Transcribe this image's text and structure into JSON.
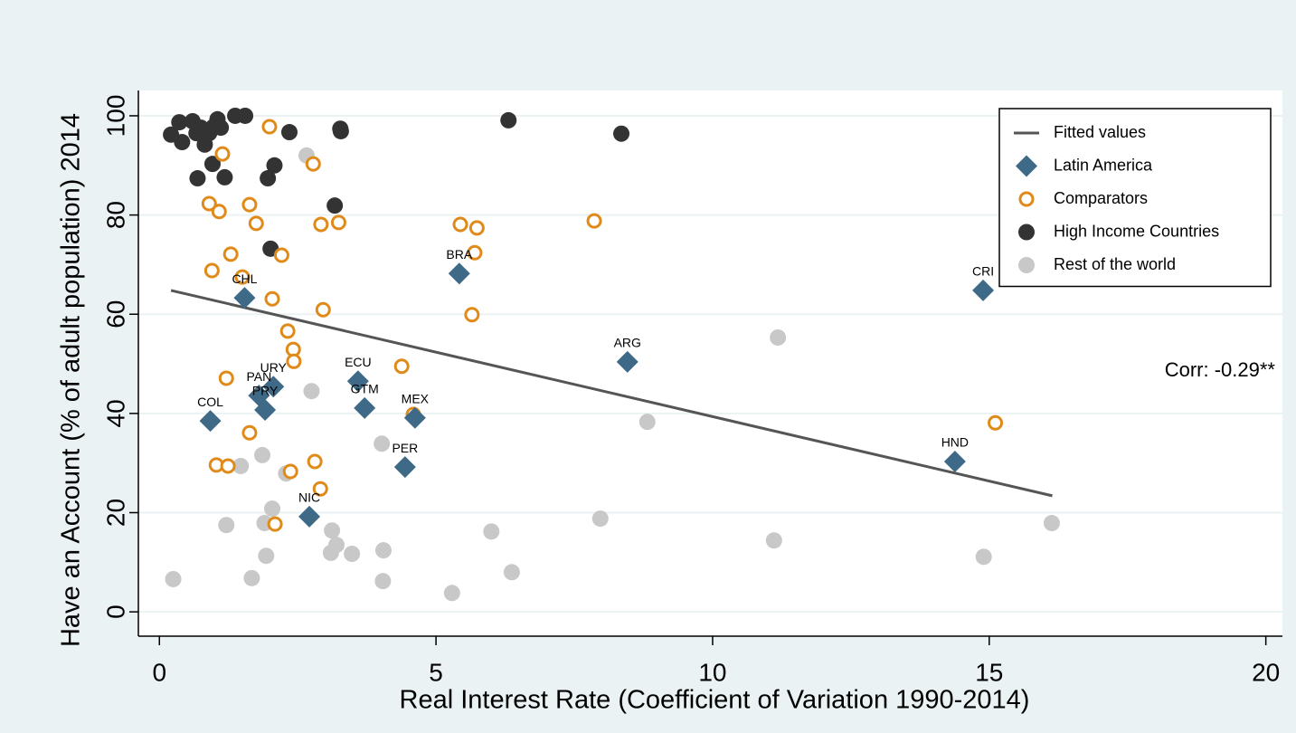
{
  "chart_data": {
    "type": "scatter",
    "x_label": "Real Interest Rate (Coefficient of Variation 1990-2014)",
    "y_label": "Have an Account (% of adult population) 2014",
    "annotation": "Corr: -0.29**",
    "xlim": [
      -0.38,
      20.3
    ],
    "ylim": [
      -4.9,
      105.1
    ],
    "xticks": [
      0,
      5,
      10,
      15,
      20
    ],
    "yticks": [
      0,
      20,
      40,
      60,
      80,
      100
    ],
    "grid": true,
    "legend": "top-right",
    "series": [
      {
        "name": "Fitted values",
        "marker": "line",
        "color": "#555555",
        "x": [
          0.21,
          16.14
        ],
        "values": [
          64.8,
          23.4
        ]
      },
      {
        "name": "Latin America",
        "marker": "diamond",
        "color": "#3e6a88",
        "labels": [
          "CHL",
          "BRA",
          "CRI",
          "ARG",
          "ECU",
          "GTM",
          "MEX",
          "PER",
          "HND",
          "NIC",
          "COL",
          "URY",
          "PAN",
          "PRY"
        ],
        "x": [
          1.54,
          5.42,
          14.89,
          8.46,
          3.59,
          3.71,
          4.62,
          4.44,
          14.38,
          2.71,
          0.92,
          2.06,
          1.8,
          1.91
        ],
        "values": [
          63.3,
          68.2,
          64.8,
          50.4,
          46.5,
          41.1,
          39.1,
          29.2,
          30.3,
          19.2,
          38.5,
          45.4,
          43.6,
          40.7
        ]
      },
      {
        "name": "Comparators",
        "marker": "hollow-circle",
        "color": "#e08a1a",
        "x": [
          1.99,
          1.14,
          2.78,
          0.9,
          1.63,
          1.08,
          1.75,
          2.92,
          3.24,
          5.44,
          5.74,
          7.86,
          5.7,
          1.29,
          2.21,
          0.95,
          1.5,
          2.04,
          2.96,
          5.65,
          2.32,
          2.42,
          2.43,
          4.38,
          1.21,
          4.59,
          15.11,
          1.63,
          2.81,
          1.03,
          1.24,
          2.37,
          2.91,
          2.09
        ],
        "values": [
          97.8,
          92.3,
          90.3,
          82.3,
          82.1,
          80.7,
          78.3,
          78.1,
          78.5,
          78.1,
          77.4,
          78.8,
          72.4,
          72.1,
          71.9,
          68.8,
          67.5,
          63.1,
          60.9,
          59.9,
          56.6,
          52.9,
          50.5,
          49.5,
          47.1,
          39.8,
          38.1,
          36.1,
          30.3,
          29.6,
          29.4,
          28.3,
          24.8,
          17.7
        ]
      },
      {
        "name": "High Income Countries",
        "marker": "circle",
        "color": "#333333",
        "x": [
          0.21,
          0.36,
          0.41,
          0.6,
          0.67,
          0.75,
          0.82,
          0.9,
          0.98,
          1.05,
          1.11,
          0.96,
          0.69,
          1.18,
          1.37,
          1.55,
          2.35,
          3.28,
          3.27,
          1.96,
          2.08,
          3.17,
          2.01,
          6.31,
          8.35
        ],
        "values": [
          96.2,
          98.7,
          94.7,
          98.9,
          96.5,
          97.6,
          94.2,
          96.5,
          97.8,
          99.3,
          97.6,
          90.3,
          87.4,
          87.6,
          100,
          100,
          96.7,
          96.9,
          97.4,
          87.4,
          90.0,
          81.9,
          73.2,
          99.1,
          96.4
        ]
      },
      {
        "name": "Rest of the world",
        "marker": "circle",
        "color": "#c8c8c8",
        "x": [
          2.66,
          0.25,
          2.75,
          11.18,
          8.82,
          4.02,
          1.86,
          1.47,
          2.29,
          2.04,
          1.21,
          1.9,
          7.97,
          16.13,
          3.12,
          6.0,
          3.2,
          3.1,
          3.48,
          4.05,
          1.93,
          11.11,
          14.9,
          6.37,
          1.67,
          4.04,
          5.29
        ],
        "values": [
          92.0,
          6.6,
          44.5,
          55.3,
          38.3,
          33.9,
          31.6,
          29.4,
          27.9,
          20.8,
          17.5,
          17.9,
          18.8,
          17.9,
          16.4,
          16.2,
          13.5,
          11.9,
          11.7,
          12.4,
          11.3,
          14.4,
          11.1,
          8.0,
          6.8,
          6.2,
          3.8
        ]
      }
    ]
  }
}
